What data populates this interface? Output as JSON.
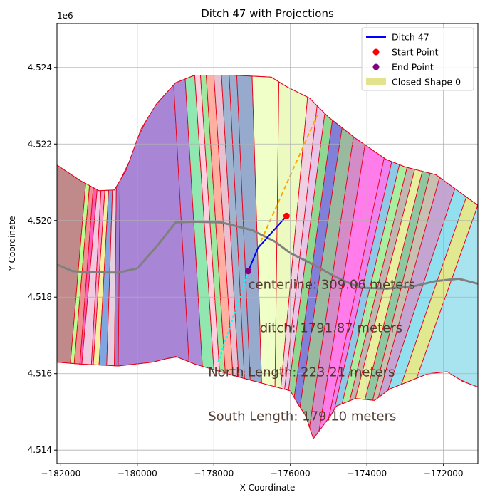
{
  "chart_data": {
    "type": "map-plot",
    "title": "Ditch 47 with Projections",
    "xlabel": "X Coordinate",
    "ylabel": "Y Coordinate",
    "y_offset_label": "1e6",
    "xlim": [
      -182100,
      -171100
    ],
    "ylim": [
      4.51365,
      4.52515
    ],
    "x_ticks": [
      {
        "value": -182000,
        "label": "−182000"
      },
      {
        "value": -180000,
        "label": "−180000"
      },
      {
        "value": -178000,
        "label": "−178000"
      },
      {
        "value": -176000,
        "label": "−176000"
      },
      {
        "value": -174000,
        "label": "−174000"
      },
      {
        "value": -172000,
        "label": "−172000"
      }
    ],
    "y_ticks": [
      {
        "value": 4.514,
        "label": "4.514"
      },
      {
        "value": 4.516,
        "label": "4.516"
      },
      {
        "value": 4.518,
        "label": "4.518"
      },
      {
        "value": 4.52,
        "label": "4.520"
      },
      {
        "value": 4.522,
        "label": "4.522"
      },
      {
        "value": 4.524,
        "label": "4.524"
      }
    ],
    "grid": true,
    "legend_position": "top-right",
    "legend": [
      {
        "label": "Ditch 47",
        "kind": "line",
        "color": "#0000ff"
      },
      {
        "label": "Start Point",
        "kind": "dot",
        "color": "#ff0000"
      },
      {
        "label": "End Point",
        "kind": "dot",
        "color": "#800080"
      },
      {
        "label": "Closed Shape 0",
        "kind": "patch",
        "color": "#e0e080"
      }
    ],
    "ditch_line": [
      [
        -176100,
        4.52012
      ],
      [
        -176850,
        4.51928
      ],
      [
        -177100,
        4.51868
      ]
    ],
    "start_point": [
      -176100,
      4.52012
    ],
    "end_point": [
      -177100,
      4.51868
    ],
    "north_projection": [
      [
        -176850,
        4.51928
      ],
      [
        -175300,
        4.52275
      ]
    ],
    "south_projection": [
      [
        -177100,
        4.51868
      ],
      [
        -177900,
        4.51625
      ]
    ],
    "centerline": [
      [
        -182100,
        4.51885
      ],
      [
        -181700,
        4.51868
      ],
      [
        -181300,
        4.51865
      ],
      [
        -180500,
        4.51864
      ],
      [
        -180000,
        4.51875
      ],
      [
        -179500,
        4.51932
      ],
      [
        -179000,
        4.51995
      ],
      [
        -178500,
        4.51997
      ],
      [
        -177800,
        4.51995
      ],
      [
        -177000,
        4.51975
      ],
      [
        -176400,
        4.51945
      ],
      [
        -176000,
        4.51915
      ],
      [
        -175400,
        4.51885
      ],
      [
        -174800,
        4.51852
      ],
      [
        -174200,
        4.51825
      ],
      [
        -173500,
        4.51822
      ],
      [
        -172800,
        4.51828
      ],
      [
        -172200,
        4.51842
      ],
      [
        -171600,
        4.51848
      ],
      [
        -171100,
        4.51835
      ]
    ],
    "boundary": [
      [
        -182100,
        4.52145
      ],
      [
        -181500,
        4.52105
      ],
      [
        -181000,
        4.52078
      ],
      [
        -180600,
        4.5208
      ],
      [
        -180300,
        4.5213
      ],
      [
        -179900,
        4.5224
      ],
      [
        -179500,
        4.52305
      ],
      [
        -179000,
        4.5236
      ],
      [
        -178500,
        4.5238
      ],
      [
        -177500,
        4.5238
      ],
      [
        -176500,
        4.52375
      ],
      [
        -176100,
        4.5235
      ],
      [
        -175500,
        4.5232
      ],
      [
        -175000,
        4.5227
      ],
      [
        -174300,
        4.52215
      ],
      [
        -173500,
        4.5216
      ],
      [
        -173000,
        4.5214
      ],
      [
        -172200,
        4.5212
      ],
      [
        -171100,
        4.5204
      ],
      [
        -171100,
        4.51565
      ],
      [
        -171500,
        4.5158
      ],
      [
        -171900,
        4.51605
      ],
      [
        -172400,
        4.516
      ],
      [
        -172900,
        4.5158
      ],
      [
        -173400,
        4.5156
      ],
      [
        -173800,
        4.5153
      ],
      [
        -174300,
        4.51535
      ],
      [
        -174800,
        4.51515
      ],
      [
        -174950,
        4.5149
      ],
      [
        -175100,
        4.5147
      ],
      [
        -175400,
        4.5143
      ],
      [
        -175600,
        4.5149
      ],
      [
        -175800,
        4.5152
      ],
      [
        -176000,
        4.51555
      ],
      [
        -177300,
        4.5159
      ],
      [
        -178500,
        4.51625
      ],
      [
        -179000,
        4.51645
      ],
      [
        -179600,
        4.5163
      ],
      [
        -180500,
        4.5162
      ],
      [
        -181500,
        4.51625
      ],
      [
        -182100,
        4.5163
      ]
    ],
    "strip_cuts": [
      [
        -182100,
        -182100
      ],
      [
        -181350,
        -181750
      ],
      [
        -181250,
        -181650
      ],
      [
        -181150,
        -181500
      ],
      [
        -181050,
        -181450
      ],
      [
        -180950,
        -181200
      ],
      [
        -180850,
        -181150
      ],
      [
        -180750,
        -181000
      ],
      [
        -180650,
        -180800
      ],
      [
        -180550,
        -180600
      ],
      [
        -180450,
        -180500
      ],
      [
        -179050,
        -178650
      ],
      [
        -178750,
        -178300
      ],
      [
        -178500,
        -178000
      ],
      [
        -178350,
        -177850
      ],
      [
        -178200,
        -177700
      ],
      [
        -178000,
        -177500
      ],
      [
        -177800,
        -177350
      ],
      [
        -177600,
        -177200
      ],
      [
        -177400,
        -177050
      ],
      [
        -177000,
        -176750
      ],
      [
        -176300,
        -176400
      ],
      [
        -175550,
        -176250
      ],
      [
        -175300,
        -176150
      ],
      [
        -175100,
        -176050
      ],
      [
        -174900,
        -175900
      ],
      [
        -174650,
        -175750
      ],
      [
        -174350,
        -175500
      ],
      [
        -174050,
        -175250
      ],
      [
        -173550,
        -175000
      ],
      [
        -173350,
        -174850
      ],
      [
        -173150,
        -174650
      ],
      [
        -172950,
        -174450
      ],
      [
        -172750,
        -174300
      ],
      [
        -172550,
        -174050
      ],
      [
        -172350,
        -173850
      ],
      [
        -172100,
        -173700
      ],
      [
        -171700,
        -173450
      ],
      [
        -171400,
        -173100
      ],
      [
        -171100,
        -172700
      ],
      [
        -171100,
        -171100
      ]
    ],
    "strip_colors": [
      "#c08a8a",
      "#b8ff90",
      "#ee9090",
      "#ff5cb8",
      "#f0c8e0",
      "#ff99cc",
      "#f5f0a0",
      "#7fa6e0",
      "#e8d0e0",
      "#9f7fd0",
      "#a985d6",
      "#ac8cd8",
      "#90e8b0",
      "#ffcfe0",
      "#a0e8a0",
      "#ffb0a0",
      "#e8c0d0",
      "#a0b4d0",
      "#9aaed0",
      "#96aace",
      "#f0ffc8",
      "#ecfac0",
      "#f0d0e0",
      "#e8c4e8",
      "#90d890",
      "#8080d8",
      "#9abaa0",
      "#d48cc8",
      "#ff7cea",
      "#f080f0",
      "#90c8e8",
      "#a8f0a0",
      "#c0b8b0",
      "#e8f0a0",
      "#8fc8a0",
      "#c8c0b0",
      "#c4a4d0",
      "#90e0f0",
      "#e0e890",
      "#a8e4f0"
    ],
    "annotations": [
      {
        "text": "centerline: 309.06 meters",
        "x": -177100,
        "y": 4.51822
      },
      {
        "text": "ditch: 1791.87 meters",
        "x": -176800,
        "y": 4.51708
      },
      {
        "text": "North Length: 223.21 meters",
        "x": -178150,
        "y": 4.51593
      },
      {
        "text": "South Length: 179.10 meters",
        "x": -178150,
        "y": 4.51478
      }
    ]
  }
}
